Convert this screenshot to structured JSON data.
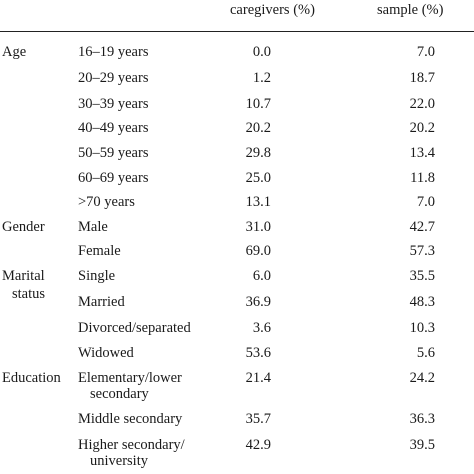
{
  "columns": {
    "caregivers": "caregivers (%)",
    "sample": "sample (%)"
  },
  "groups": [
    {
      "category": "Age",
      "rows": [
        {
          "label": "16–19 years",
          "caregivers": "0.0",
          "sample": "7.0"
        },
        {
          "label": "20–29 years",
          "caregivers": "1.2",
          "sample": "18.7"
        },
        {
          "label": "30–39 years",
          "caregivers": "10.7",
          "sample": "22.0"
        },
        {
          "label": "40–49 years",
          "caregivers": "20.2",
          "sample": "20.2"
        },
        {
          "label": "50–59 years",
          "caregivers": "29.8",
          "sample": "13.4"
        },
        {
          "label": "60–69 years",
          "caregivers": "25.0",
          "sample": "11.8"
        },
        {
          "label": ">70 years",
          "caregivers": "13.1",
          "sample": "7.0"
        }
      ]
    },
    {
      "category": "Gender",
      "rows": [
        {
          "label": "Male",
          "caregivers": "31.0",
          "sample": "42.7"
        },
        {
          "label": "Female",
          "caregivers": "69.0",
          "sample": "57.3"
        }
      ]
    },
    {
      "category_line1": "Marital",
      "category_line2": "status",
      "rows": [
        {
          "label": "Single",
          "caregivers": "6.0",
          "sample": "35.5"
        },
        {
          "label": "Married",
          "caregivers": "36.9",
          "sample": "48.3"
        },
        {
          "label": "Divorced/separated",
          "caregivers": "3.6",
          "sample": "10.3"
        },
        {
          "label": "Widowed",
          "caregivers": "53.6",
          "sample": "5.6"
        }
      ]
    },
    {
      "category": "Education",
      "rows": [
        {
          "label_line1": "Elementary/lower",
          "label_line2": "secondary",
          "caregivers": "21.4",
          "sample": "24.2"
        },
        {
          "label": "Middle secondary",
          "caregivers": "35.7",
          "sample": "36.3"
        },
        {
          "label_line1": "Higher secondary/",
          "label_line2": "university",
          "caregivers": "42.9",
          "sample": "39.5"
        }
      ]
    }
  ]
}
